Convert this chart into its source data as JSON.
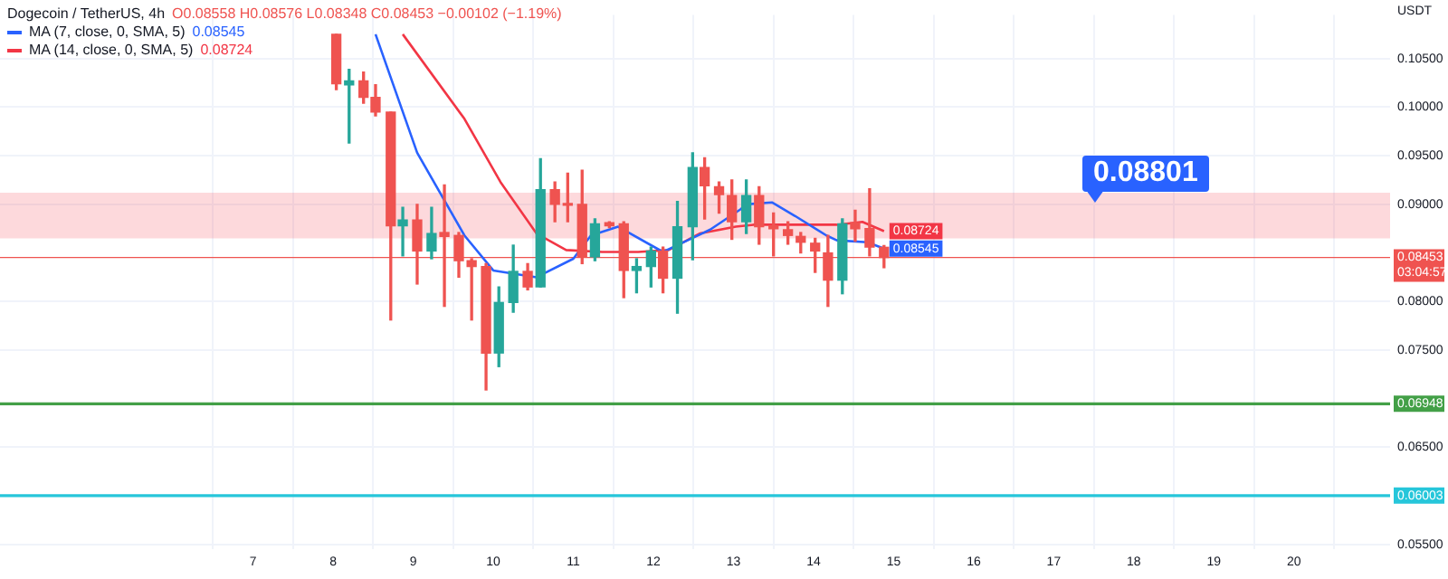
{
  "chart_data": {
    "type": "candlestick",
    "title": "Dogecoin / TetherUS, 4h",
    "ylabel": "USDT",
    "x": [
      8.04,
      8.2,
      8.38,
      8.53,
      8.72,
      8.87,
      9.05,
      9.23,
      9.39,
      9.57,
      9.73,
      9.91,
      10.07,
      10.25,
      10.43,
      10.59,
      10.77,
      10.93,
      11.11,
      11.27,
      11.45,
      11.63,
      11.79,
      11.97,
      12.12,
      12.3,
      12.49,
      12.64,
      12.82,
      12.98,
      13.16,
      13.32,
      13.5,
      13.68,
      13.84,
      14.02,
      14.18,
      14.36,
      14.52,
      14.7,
      14.88
    ],
    "ohlc": [
      [
        0.1075,
        0.1075,
        0.1018,
        0.1024
      ],
      [
        0.1023,
        0.1039,
        0.0963,
        0.1027
      ],
      [
        0.1027,
        0.1036,
        0.1004,
        0.101
      ],
      [
        0.101,
        0.1023,
        0.0991,
        0.0995
      ],
      [
        0.0995,
        0.0995,
        0.0781,
        0.0878
      ],
      [
        0.0878,
        0.0897,
        0.0847,
        0.0884
      ],
      [
        0.0884,
        0.09,
        0.0818,
        0.0852
      ],
      [
        0.0852,
        0.0897,
        0.0844,
        0.087
      ],
      [
        0.0871,
        0.092,
        0.0795,
        0.0867
      ],
      [
        0.0868,
        0.0871,
        0.0825,
        0.0842
      ],
      [
        0.0842,
        0.0844,
        0.0781,
        0.0836
      ],
      [
        0.0836,
        0.0839,
        0.0709,
        0.0747
      ],
      [
        0.0747,
        0.0815,
        0.0733,
        0.0799
      ],
      [
        0.0799,
        0.0858,
        0.0789,
        0.0831
      ],
      [
        0.0831,
        0.0839,
        0.0812,
        0.0815
      ],
      [
        0.0815,
        0.0947,
        0.0815,
        0.0915
      ],
      [
        0.0915,
        0.0923,
        0.0882,
        0.09
      ],
      [
        0.0901,
        0.0932,
        0.0882,
        0.0899
      ],
      [
        0.09,
        0.0935,
        0.0839,
        0.0846
      ],
      [
        0.0846,
        0.0885,
        0.0842,
        0.088
      ],
      [
        0.0881,
        0.0882,
        0.0876,
        0.0878
      ],
      [
        0.088,
        0.0882,
        0.0804,
        0.0832
      ],
      [
        0.0832,
        0.0844,
        0.0809,
        0.0836
      ],
      [
        0.0836,
        0.0856,
        0.0815,
        0.0852
      ],
      [
        0.0852,
        0.0856,
        0.0809,
        0.0824
      ],
      [
        0.0824,
        0.0903,
        0.0788,
        0.0877
      ],
      [
        0.0877,
        0.0953,
        0.0843,
        0.0938
      ],
      [
        0.0938,
        0.0948,
        0.0885,
        0.0919
      ],
      [
        0.0918,
        0.0923,
        0.0891,
        0.091
      ],
      [
        0.0909,
        0.0925,
        0.0864,
        0.0882
      ],
      [
        0.0882,
        0.0925,
        0.087,
        0.0909
      ],
      [
        0.0909,
        0.0918,
        0.0859,
        0.0877
      ],
      [
        0.0878,
        0.0891,
        0.0847,
        0.0875
      ],
      [
        0.0874,
        0.0882,
        0.0859,
        0.0868
      ],
      [
        0.0867,
        0.0871,
        0.085,
        0.0861
      ],
      [
        0.086,
        0.0865,
        0.083,
        0.0852
      ],
      [
        0.085,
        0.0868,
        0.0795,
        0.0822
      ],
      [
        0.0822,
        0.0885,
        0.0808,
        0.088
      ],
      [
        0.0881,
        0.0894,
        0.0862,
        0.0875
      ],
      [
        0.0875,
        0.0916,
        0.0847,
        0.0856
      ],
      [
        0.08558,
        0.08576,
        0.08348,
        0.08453
      ]
    ],
    "colors": [
      "#ef5350",
      "#26a69a",
      "#ef5350",
      "#ef5350",
      "#ef5350",
      "#26a69a",
      "#ef5350",
      "#26a69a",
      "#ef5350",
      "#ef5350",
      "#ef5350",
      "#ef5350",
      "#26a69a",
      "#26a69a",
      "#ef5350",
      "#26a69a",
      "#ef5350",
      "#ef5350",
      "#ef5350",
      "#26a69a",
      "#ef5350",
      "#ef5350",
      "#26a69a",
      "#26a69a",
      "#ef5350",
      "#26a69a",
      "#26a69a",
      "#ef5350",
      "#ef5350",
      "#ef5350",
      "#26a69a",
      "#ef5350",
      "#ef5350",
      "#ef5350",
      "#ef5350",
      "#ef5350",
      "#ef5350",
      "#26a69a",
      "#ef5350",
      "#ef5350",
      "#ef5350"
    ],
    "series": [
      {
        "type": "line",
        "name": "MA (7, close, 0, SMA, 5)",
        "color": "#2962ff",
        "x": [
          8.53,
          9.05,
          9.64,
          10.0,
          10.54,
          11.0,
          11.22,
          11.56,
          12.12,
          12.35,
          12.71,
          13.09,
          13.16,
          13.48,
          13.77,
          14.16,
          14.29,
          14.67,
          14.88
        ],
        "values": [
          0.1075,
          0.0953,
          0.0868,
          0.0832,
          0.0825,
          0.0844,
          0.0868,
          0.0877,
          0.0851,
          0.086,
          0.0874,
          0.0895,
          0.09,
          0.0902,
          0.0888,
          0.0868,
          0.0863,
          0.0861,
          0.08545
        ],
        "value_labels": [
          null,
          null,
          null,
          null,
          null,
          null,
          null,
          null,
          null,
          null,
          null,
          null,
          null,
          null,
          null,
          null,
          null,
          null,
          "0.08545"
        ]
      },
      {
        "type": "line",
        "name": "MA (14, close, 0, SMA, 5)",
        "color": "#f23645",
        "x": [
          8.87,
          9.64,
          10.09,
          10.54,
          10.91,
          11.36,
          11.81,
          12.19,
          12.58,
          13.03,
          13.25,
          13.84,
          14.29,
          14.61,
          14.88
        ],
        "values": [
          0.1075,
          0.0988,
          0.0923,
          0.087,
          0.0853,
          0.0851,
          0.0851,
          0.0853,
          0.087,
          0.0877,
          0.0879,
          0.0879,
          0.0879,
          0.0882,
          0.08724
        ],
        "value_labels": [
          null,
          null,
          null,
          null,
          null,
          null,
          null,
          null,
          null,
          null,
          null,
          null,
          null,
          null,
          "0.08724"
        ]
      }
    ],
    "xlim": [
      3.84,
      21.2
    ],
    "xticks": [
      7,
      8,
      9,
      10,
      11,
      12,
      13,
      14,
      15,
      16,
      17,
      18,
      19,
      20
    ],
    "ylim": [
      0.0545,
      0.1095
    ],
    "yticks": [
      {
        "value": 0.055,
        "label": "0.05500"
      },
      {
        "value": 0.06,
        "label": null
      },
      {
        "value": 0.065,
        "label": "0.06500"
      },
      {
        "value": 0.075,
        "label": "0.07500"
      },
      {
        "value": 0.08,
        "label": "0.08000"
      },
      {
        "value": 0.09,
        "label": "0.09000"
      },
      {
        "value": 0.095,
        "label": "0.09500"
      },
      {
        "value": 0.1,
        "label": "0.10000"
      },
      {
        "value": 0.105,
        "label": "0.10500"
      }
    ],
    "bands": [
      {
        "axis": "y",
        "from": 0.0865,
        "to": 0.0912,
        "color": "#f7525f"
      }
    ],
    "ref_lines": [
      {
        "axis": "y",
        "value": 0.08453,
        "label": "0.08453",
        "color": "#ef5350",
        "line_style": "solid"
      },
      {
        "axis": "y",
        "value": 0.06948,
        "label": "0.06948",
        "color": "#43a047",
        "line_style": "solid"
      },
      {
        "axis": "y",
        "value": 0.06003,
        "label": "0.06003",
        "color": "#26c6da",
        "line_style": "solid"
      }
    ],
    "annotations": [
      "O0.08558 H0.08576 L0.08348 C0.08453 −0.00102 (−1.19%)",
      "03:04:57",
      "0.08801"
    ],
    "grid": true,
    "legend": "top left",
    "marker": "none",
    "line_style": "solid"
  }
}
